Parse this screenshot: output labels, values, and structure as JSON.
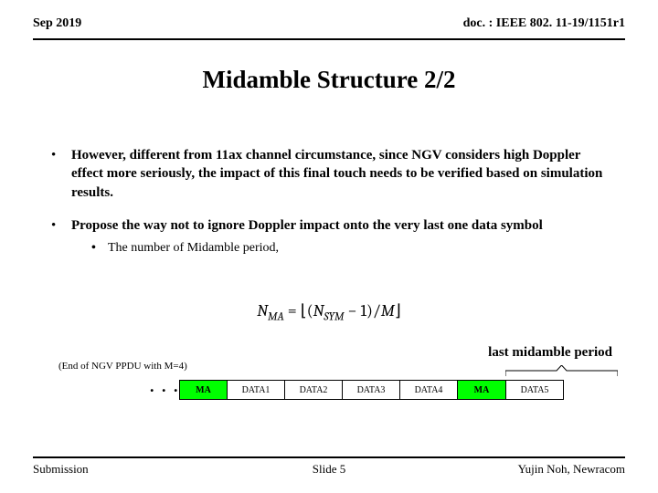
{
  "header": {
    "left": "Sep 2019",
    "right": "doc. : IEEE 802. 11-19/1151r1"
  },
  "title": "Midamble Structure 2/2",
  "bullet1": "However, different from 11ax channel circumstance, since NGV considers high Doppler effect more seriously, the impact of this final touch needs to be verified based on simulation results.",
  "bullet2": "Propose the way not to ignore Doppler impact onto the very last one data symbol",
  "subbullet": "The number of Midamble period,",
  "formula": {
    "lhs": "N",
    "lhs_sub": "MA",
    "sym": "N",
    "sym_sub": "SYM",
    "minus1": "− 1",
    "div": "M"
  },
  "lastmid": "last midamble period",
  "endnote": "(End of NGV PPDU with M=4)",
  "dots": ". . .",
  "blocks": [
    {
      "label": "MA",
      "cls": "ma"
    },
    {
      "label": "DATA1",
      "cls": "dblk"
    },
    {
      "label": "DATA2",
      "cls": "dblk"
    },
    {
      "label": "DATA3",
      "cls": "dblk"
    },
    {
      "label": "DATA4",
      "cls": "dblk"
    },
    {
      "label": "MA",
      "cls": "ma"
    },
    {
      "label": "DATA5",
      "cls": "dblk"
    }
  ],
  "footer": {
    "left": "Submission",
    "center": "Slide 5",
    "right": "Yujin Noh, Newracom"
  }
}
